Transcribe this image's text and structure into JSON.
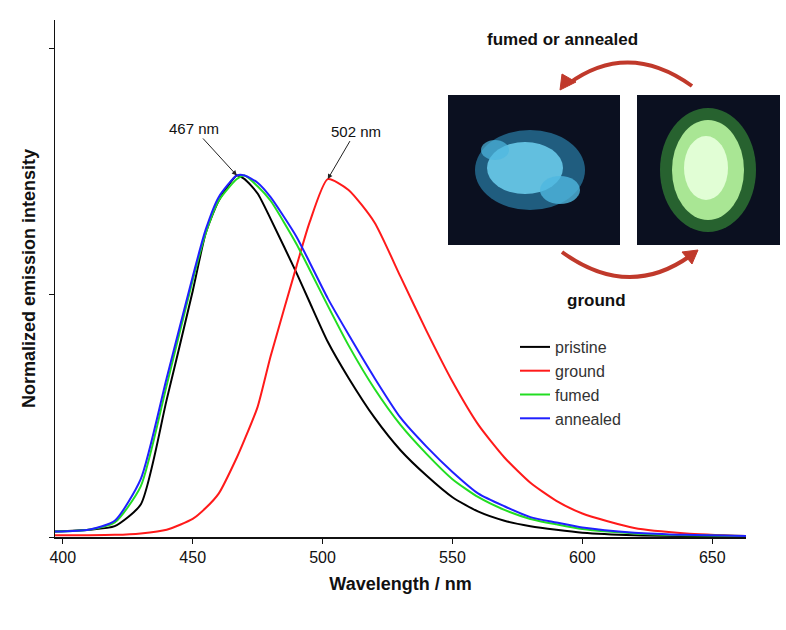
{
  "chart_data": {
    "type": "line",
    "x_label": "Wavelength / nm",
    "y_label": "Normalized emission intensity",
    "x": [
      397,
      410,
      420,
      430,
      440,
      450,
      455,
      460,
      467,
      470,
      475,
      480,
      490,
      495,
      502,
      510,
      520,
      530,
      540,
      550,
      560,
      570,
      580,
      590,
      600,
      620,
      640,
      663
    ],
    "series": [
      {
        "name": "pristine",
        "color": "#000000",
        "values": [
          0.015,
          0.02,
          0.03,
          0.09,
          0.38,
          0.68,
          0.84,
          0.93,
          1.0,
          0.99,
          0.95,
          0.88,
          0.73,
          0.65,
          0.54,
          0.44,
          0.33,
          0.24,
          0.17,
          0.11,
          0.07,
          0.045,
          0.03,
          0.02,
          0.012,
          0.005,
          0.003,
          0.002
        ]
      },
      {
        "name": "ground",
        "color": "#ff1a1a",
        "values": [
          0.005,
          0.005,
          0.006,
          0.01,
          0.02,
          0.05,
          0.08,
          0.12,
          0.22,
          0.27,
          0.36,
          0.5,
          0.75,
          0.87,
          0.99,
          0.96,
          0.87,
          0.72,
          0.57,
          0.43,
          0.31,
          0.22,
          0.15,
          0.1,
          0.065,
          0.025,
          0.01,
          0.003
        ]
      },
      {
        "name": "fumed",
        "color": "#22dd22",
        "values": [
          0.015,
          0.02,
          0.04,
          0.14,
          0.42,
          0.71,
          0.84,
          0.93,
          0.99,
          1.0,
          0.97,
          0.93,
          0.81,
          0.74,
          0.64,
          0.53,
          0.41,
          0.31,
          0.23,
          0.16,
          0.11,
          0.075,
          0.05,
          0.035,
          0.022,
          0.01,
          0.005,
          0.003
        ]
      },
      {
        "name": "annealed",
        "color": "#2020ff",
        "values": [
          0.015,
          0.02,
          0.045,
          0.16,
          0.44,
          0.72,
          0.85,
          0.94,
          1.0,
          1.0,
          0.98,
          0.94,
          0.83,
          0.76,
          0.66,
          0.56,
          0.44,
          0.33,
          0.25,
          0.18,
          0.12,
          0.085,
          0.055,
          0.04,
          0.026,
          0.012,
          0.006,
          0.003
        ]
      }
    ],
    "xlim": [
      397,
      663
    ],
    "ylim": [
      0,
      1.43
    ],
    "xticks": [
      400,
      450,
      500,
      550,
      600,
      650
    ],
    "yticks": [
      0,
      0.67,
      1.35
    ],
    "tick_labels": "x",
    "grid": false,
    "legend": "right",
    "annotations": [
      {
        "text": "467 nm",
        "x": 467,
        "y": 1.0
      },
      {
        "text": "502 nm",
        "x": 502,
        "y": 0.99
      }
    ],
    "inset_labels": [
      "fumed or annealed",
      "ground"
    ]
  }
}
